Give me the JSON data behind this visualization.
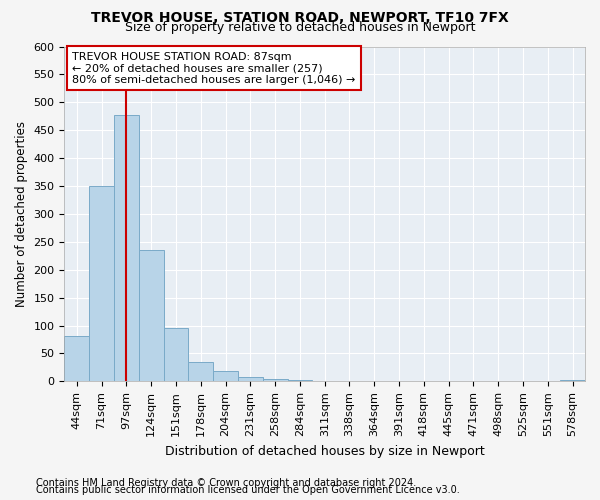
{
  "title1": "TREVOR HOUSE, STATION ROAD, NEWPORT, TF10 7FX",
  "title2": "Size of property relative to detached houses in Newport",
  "xlabel": "Distribution of detached houses by size in Newport",
  "ylabel": "Number of detached properties",
  "categories": [
    "44sqm",
    "71sqm",
    "97sqm",
    "124sqm",
    "151sqm",
    "178sqm",
    "204sqm",
    "231sqm",
    "258sqm",
    "284sqm",
    "311sqm",
    "338sqm",
    "364sqm",
    "391sqm",
    "418sqm",
    "445sqm",
    "471sqm",
    "498sqm",
    "525sqm",
    "551sqm",
    "578sqm"
  ],
  "values": [
    82,
    350,
    478,
    235,
    95,
    35,
    18,
    7,
    5,
    2,
    1,
    0,
    1,
    0,
    0,
    0,
    0,
    0,
    0,
    0,
    2
  ],
  "bar_color": "#b8d4e8",
  "bar_edge_color": "#7aaac8",
  "vline_x": 2.0,
  "vline_color": "#cc0000",
  "annotation_text": "TREVOR HOUSE STATION ROAD: 87sqm\n← 20% of detached houses are smaller (257)\n80% of semi-detached houses are larger (1,046) →",
  "annotation_box_color": "white",
  "annotation_box_edge": "#cc0000",
  "ylim": [
    0,
    600
  ],
  "yticks": [
    0,
    50,
    100,
    150,
    200,
    250,
    300,
    350,
    400,
    450,
    500,
    550,
    600
  ],
  "footer1": "Contains HM Land Registry data © Crown copyright and database right 2024.",
  "footer2": "Contains public sector information licensed under the Open Government Licence v3.0.",
  "bg_color": "#f5f5f5",
  "plot_bg_color": "#e8eef4",
  "title1_fontsize": 10,
  "title2_fontsize": 9,
  "xlabel_fontsize": 9,
  "ylabel_fontsize": 8.5,
  "tick_fontsize": 8,
  "annot_fontsize": 8,
  "footer_fontsize": 7
}
